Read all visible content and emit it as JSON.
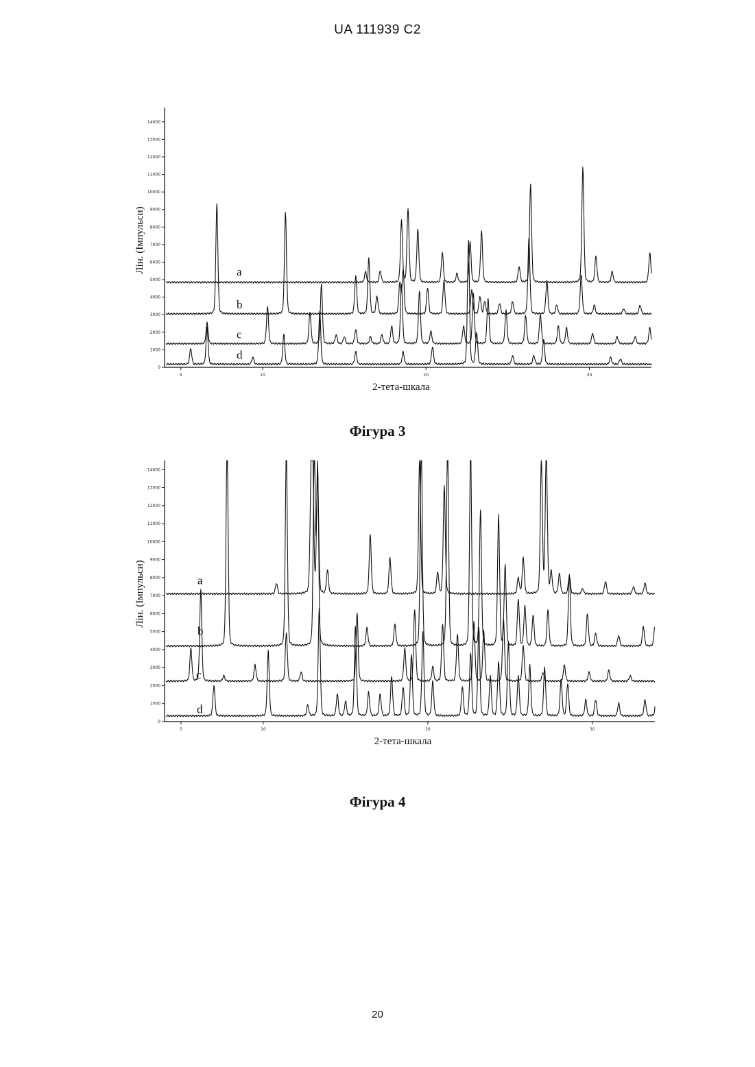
{
  "page": {
    "header": "UA   111939   C2",
    "page_number": "20"
  },
  "chart_data": [
    {
      "type": "line",
      "caption": "Фігура 3",
      "xlabel": "2-тета-шкала",
      "ylabel": "Лін. (Імпульси)",
      "xlim": [
        4,
        33.8
      ],
      "ylim": [
        0,
        14500
      ],
      "xticks": [
        5,
        10,
        20,
        30
      ],
      "yticks": [
        0,
        1000,
        2000,
        3000,
        4000,
        5000,
        6000,
        7000,
        8000,
        9000,
        10000,
        11000,
        12000,
        13000,
        14000
      ],
      "ytick_labels": [
        "0",
        "1000",
        "2000",
        "3000",
        "4000",
        "5000",
        "6000",
        "7000",
        "8000",
        "9000",
        "10000",
        "11000",
        "12000",
        "13000",
        "14000"
      ],
      "xtick_labels": [
        "5",
        "10",
        "20",
        "30"
      ],
      "series": [
        {
          "name": "a",
          "baseline": 4850,
          "peaks": [
            [
              16.3,
              600
            ],
            [
              17.2,
              650
            ],
            [
              18.5,
              3500
            ],
            [
              18.9,
              4200
            ],
            [
              19.5,
              3000
            ],
            [
              21.0,
              1700
            ],
            [
              21.9,
              500
            ],
            [
              22.7,
              2300
            ],
            [
              23.4,
              2900
            ],
            [
              25.7,
              900
            ],
            [
              26.4,
              5600
            ],
            [
              29.6,
              6600
            ],
            [
              30.4,
              1500
            ],
            [
              31.4,
              600
            ],
            [
              33.7,
              1700
            ]
          ]
        },
        {
          "name": "b",
          "baseline": 3050,
          "peaks": [
            [
              7.2,
              6300
            ],
            [
              11.4,
              5800
            ],
            [
              15.7,
              2200
            ],
            [
              16.5,
              3200
            ],
            [
              17.0,
              1000
            ],
            [
              18.4,
              1800
            ],
            [
              18.6,
              2500
            ],
            [
              20.1,
              1500
            ],
            [
              21.1,
              1900
            ],
            [
              22.8,
              1400
            ],
            [
              23.3,
              1000
            ],
            [
              23.6,
              700
            ],
            [
              24.5,
              600
            ],
            [
              25.3,
              700
            ],
            [
              26.3,
              4300
            ],
            [
              27.4,
              1900
            ],
            [
              28.0,
              500
            ],
            [
              29.5,
              2200
            ],
            [
              30.3,
              500
            ],
            [
              32.1,
              300
            ],
            [
              33.1,
              500
            ]
          ]
        },
        {
          "name": "c",
          "baseline": 1350,
          "peaks": [
            [
              6.6,
              1200
            ],
            [
              10.3,
              2100
            ],
            [
              12.9,
              1800
            ],
            [
              13.6,
              3400
            ],
            [
              14.5,
              500
            ],
            [
              15.0,
              400
            ],
            [
              15.7,
              800
            ],
            [
              16.6,
              400
            ],
            [
              17.3,
              500
            ],
            [
              17.9,
              1000
            ],
            [
              18.5,
              3400
            ],
            [
              19.6,
              3000
            ],
            [
              20.3,
              700
            ],
            [
              22.3,
              1000
            ],
            [
              22.9,
              2900
            ],
            [
              23.8,
              2600
            ],
            [
              24.9,
              1900
            ],
            [
              26.1,
              1600
            ],
            [
              27.0,
              1700
            ],
            [
              28.1,
              1000
            ],
            [
              28.6,
              900
            ],
            [
              30.2,
              600
            ],
            [
              31.7,
              400
            ],
            [
              32.8,
              400
            ],
            [
              33.7,
              900
            ]
          ]
        },
        {
          "name": "d",
          "baseline": 180,
          "peaks": [
            [
              5.6,
              900
            ],
            [
              6.6,
              2100
            ],
            [
              9.4,
              400
            ],
            [
              11.3,
              1700
            ],
            [
              13.5,
              3000
            ],
            [
              15.7,
              700
            ],
            [
              18.6,
              700
            ],
            [
              20.4,
              1000
            ],
            [
              22.6,
              7100
            ],
            [
              23.1,
              1800
            ],
            [
              25.3,
              500
            ],
            [
              26.6,
              500
            ],
            [
              27.2,
              1400
            ],
            [
              31.3,
              400
            ],
            [
              31.9,
              300
            ]
          ]
        }
      ]
    },
    {
      "type": "line",
      "caption": "Фігура 4",
      "xlabel": "2-тета-шкала",
      "ylabel": "Лін. (Імпульси)",
      "xlim": [
        4,
        33.8
      ],
      "ylim": [
        0,
        14200
      ],
      "xticks": [
        5,
        10,
        20,
        30
      ],
      "yticks": [
        0,
        1000,
        2000,
        3000,
        4000,
        5000,
        6000,
        7000,
        8000,
        9000,
        10000,
        11000,
        12000,
        13000,
        14000
      ],
      "ytick_labels": [
        "0",
        "1000",
        "2000",
        "3000",
        "4000",
        "5000",
        "6000",
        "7000",
        "8000",
        "9000",
        "10000",
        "11000",
        "12000",
        "13000",
        "14000"
      ],
      "xtick_labels": [
        "5",
        "10",
        "20",
        "30"
      ],
      "series": [
        {
          "name": "a",
          "baseline": 7100,
          "peaks": [
            [
              10.8,
              600
            ],
            [
              12.9,
              5500
            ],
            [
              13.0,
              7000
            ],
            [
              13.3,
              6800
            ],
            [
              13.9,
              1300
            ],
            [
              16.5,
              3300
            ],
            [
              17.7,
              2000
            ],
            [
              19.5,
              7500
            ],
            [
              20.6,
              1200
            ],
            [
              21.0,
              6000
            ],
            [
              25.5,
              900
            ],
            [
              25.8,
              2000
            ],
            [
              26.9,
              7500
            ],
            [
              27.2,
              8000
            ],
            [
              27.5,
              1200
            ],
            [
              28.0,
              1100
            ],
            [
              28.6,
              1000
            ],
            [
              29.4,
              300
            ],
            [
              30.8,
              700
            ],
            [
              32.5,
              400
            ],
            [
              33.2,
              600
            ]
          ]
        },
        {
          "name": "b",
          "baseline": 4200,
          "peaks": [
            [
              7.8,
              11500
            ],
            [
              11.4,
              11000
            ],
            [
              13.1,
              11000
            ],
            [
              13.3,
              10000
            ],
            [
              16.3,
              1000
            ],
            [
              18.0,
              1200
            ],
            [
              19.6,
              11500
            ],
            [
              21.2,
              11500
            ],
            [
              22.6,
              11000
            ],
            [
              23.2,
              7500
            ],
            [
              24.3,
              7300
            ],
            [
              24.7,
              4500
            ],
            [
              25.5,
              2600
            ],
            [
              25.9,
              2200
            ],
            [
              26.4,
              1700
            ],
            [
              27.3,
              2000
            ],
            [
              28.6,
              4000
            ],
            [
              29.7,
              1800
            ],
            [
              30.2,
              700
            ],
            [
              31.6,
              600
            ],
            [
              33.1,
              1100
            ],
            [
              33.8,
              1100
            ]
          ]
        },
        {
          "name": "c",
          "baseline": 2250,
          "peaks": [
            [
              5.6,
              1800
            ],
            [
              6.2,
              5100
            ],
            [
              7.6,
              300
            ],
            [
              9.5,
              900
            ],
            [
              11.4,
              2700
            ],
            [
              12.3,
              500
            ],
            [
              15.7,
              3800
            ],
            [
              18.6,
              1800
            ],
            [
              19.2,
              4000
            ],
            [
              20.3,
              800
            ],
            [
              20.9,
              3200
            ],
            [
              21.8,
              2600
            ],
            [
              22.8,
              3300
            ],
            [
              23.4,
              2800
            ],
            [
              24.6,
              3500
            ],
            [
              25.8,
              2000
            ],
            [
              27.0,
              500
            ],
            [
              28.3,
              900
            ],
            [
              29.8,
              500
            ],
            [
              31.0,
              600
            ],
            [
              32.3,
              300
            ]
          ]
        },
        {
          "name": "d",
          "baseline": 320,
          "peaks": [
            [
              7.0,
              1700
            ],
            [
              10.3,
              3600
            ],
            [
              12.7,
              600
            ],
            [
              13.4,
              6000
            ],
            [
              14.5,
              1200
            ],
            [
              15.0,
              800
            ],
            [
              15.6,
              5000
            ],
            [
              16.4,
              1300
            ],
            [
              17.1,
              1200
            ],
            [
              17.8,
              2200
            ],
            [
              18.5,
              1600
            ],
            [
              19.0,
              3400
            ],
            [
              19.7,
              4700
            ],
            [
              20.3,
              1900
            ],
            [
              22.1,
              1600
            ],
            [
              22.6,
              3500
            ],
            [
              23.1,
              4900
            ],
            [
              23.8,
              2200
            ],
            [
              24.3,
              3000
            ],
            [
              24.9,
              4100
            ],
            [
              25.5,
              2200
            ],
            [
              26.2,
              2800
            ],
            [
              27.1,
              2700
            ],
            [
              28.1,
              2000
            ],
            [
              28.5,
              1800
            ],
            [
              29.6,
              900
            ],
            [
              30.2,
              900
            ],
            [
              31.6,
              700
            ],
            [
              33.2,
              900
            ],
            [
              33.9,
              1700
            ]
          ]
        }
      ]
    }
  ]
}
